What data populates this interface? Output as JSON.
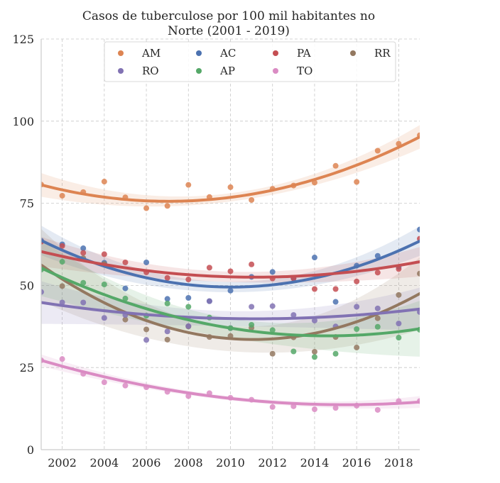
{
  "chart_data": {
    "type": "scatter",
    "title_lines": [
      "Casos de tuberculose por 100 mil habitantes no",
      "Norte (2001 - 2019)"
    ],
    "xlabel": "",
    "ylabel": "",
    "xlim": [
      2001,
      2019
    ],
    "ylim": [
      0,
      125
    ],
    "x_ticks": [
      2002,
      2004,
      2006,
      2008,
      2010,
      2012,
      2014,
      2016,
      2018
    ],
    "y_ticks": [
      0,
      25,
      50,
      75,
      100,
      125
    ],
    "grid": true,
    "legend_placement": "top",
    "fit": "quadratic regression with confidence band",
    "x": [
      2001,
      2002,
      2003,
      2004,
      2005,
      2006,
      2007,
      2008,
      2009,
      2010,
      2011,
      2012,
      2013,
      2014,
      2015,
      2016,
      2017,
      2018,
      2019
    ],
    "series": [
      {
        "name": "AM",
        "color": "#dd8452",
        "values": [
          80.7,
          77.3,
          78.4,
          81.6,
          76.8,
          73.5,
          74.2,
          80.6,
          76.9,
          79.9,
          76.0,
          79.4,
          80.4,
          81.3,
          86.4,
          81.5,
          91.0,
          93.1,
          95.7
        ]
      },
      {
        "name": "AC",
        "color": "#4c72b0",
        "values": [
          63.6,
          62.5,
          61.3,
          56.9,
          49.1,
          57.0,
          45.9,
          46.2,
          45.2,
          48.4,
          52.6,
          54.1,
          52.2,
          58.5,
          45.0,
          56.0,
          59.0,
          55.6,
          67.0
        ]
      },
      {
        "name": "PA",
        "color": "#c44e52",
        "values": [
          63.3,
          62.0,
          59.9,
          59.5,
          57.0,
          54.0,
          52.3,
          51.8,
          55.4,
          54.3,
          56.4,
          52.1,
          52.1,
          48.9,
          48.9,
          51.2,
          53.9,
          55.0,
          64.2
        ]
      },
      {
        "name": "RR",
        "color": "#937860",
        "values": [
          55.4,
          49.8,
          58.3,
          56.5,
          39.6,
          36.6,
          33.5,
          37.5,
          34.3,
          34.6,
          37.1,
          29.2,
          34.2,
          29.8,
          34.3,
          31.1,
          40.0,
          47.1,
          53.6
        ]
      },
      {
        "name": "RO",
        "color": "#8172b3",
        "values": [
          48.0,
          44.8,
          44.8,
          40.1,
          41.0,
          33.4,
          36.0,
          37.6,
          45.2,
          37.0,
          43.5,
          43.7,
          41.0,
          39.3,
          37.5,
          43.5,
          43.0,
          38.4,
          41.9
        ]
      },
      {
        "name": "AP",
        "color": "#55a868",
        "values": [
          54.8,
          57.2,
          50.8,
          50.3,
          46.0,
          40.8,
          44.5,
          43.5,
          40.2,
          37.0,
          38.0,
          36.4,
          29.9,
          28.2,
          29.2,
          36.7,
          37.4,
          34.1,
          36.5
        ]
      },
      {
        "name": "TO",
        "color": "#da8bc3",
        "values": [
          27.2,
          27.6,
          23.1,
          20.5,
          19.5,
          19.0,
          17.6,
          16.3,
          17.2,
          15.8,
          15.2,
          13.0,
          13.2,
          12.3,
          12.7,
          13.4,
          12.1,
          14.8,
          14.8
        ]
      }
    ],
    "fit_curves": [
      {
        "name": "AM",
        "at_2001": 80.6,
        "at_2010": 76.8,
        "at_2019": 95.2,
        "band": 3.6
      },
      {
        "name": "AC",
        "at_2001": 63.7,
        "at_2010": 49.5,
        "at_2019": 63.5,
        "band": 4.5
      },
      {
        "name": "PA",
        "at_2001": 60.3,
        "at_2010": 52.6,
        "at_2019": 57.2,
        "band": 4.5
      },
      {
        "name": "RR",
        "at_2001": 56.2,
        "at_2010": 33.8,
        "at_2019": 47.5,
        "band": 11.0
      },
      {
        "name": "RO",
        "at_2001": 44.8,
        "at_2010": 39.9,
        "at_2019": 42.8,
        "band": 6.5
      },
      {
        "name": "AP",
        "at_2001": 55.3,
        "at_2010": 37.0,
        "at_2019": 36.8,
        "band": 8.5
      },
      {
        "name": "TO",
        "at_2001": 27.2,
        "at_2010": 15.6,
        "at_2019": 14.5,
        "band": 1.8
      }
    ]
  }
}
